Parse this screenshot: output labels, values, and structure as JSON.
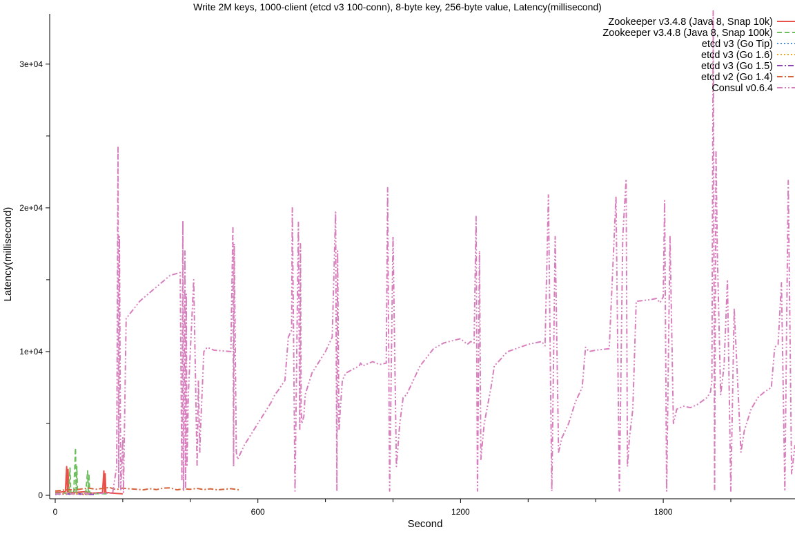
{
  "chart_data": {
    "type": "line",
    "title": "Write 2M keys, 1000-client (etcd v3 100-conn), 8-byte key, 256-byte value, Latency(millisecond)",
    "xlabel": "Second",
    "ylabel": "Latency(millisecond)",
    "xlim": [
      0,
      2190
    ],
    "ylim": [
      0,
      33500
    ],
    "x_ticks": [
      0,
      600,
      1200,
      1800
    ],
    "x_tick_labels": [
      "0",
      "600",
      "1200",
      "1800"
    ],
    "x_minor_ticks": [
      200,
      400,
      800,
      1000,
      1400,
      1600,
      2000
    ],
    "y_ticks": [
      0,
      10000,
      20000,
      30000
    ],
    "y_tick_labels": [
      "0",
      "1e+04",
      "2e+04",
      "3e+04"
    ],
    "y_minor_ticks": [
      5000,
      15000,
      25000
    ],
    "grid": false,
    "legend_position": "top-right",
    "series": [
      {
        "name": "Zookeeper v3.4.8 (Java 8, Snap 10k)",
        "color": "#e8504a",
        "dash": "solid",
        "x": [
          0,
          30,
          34,
          36,
          38,
          40,
          60,
          90,
          110,
          140,
          144,
          146,
          148,
          150,
          170,
          200
        ],
        "y": [
          200,
          250,
          2000,
          250,
          1800,
          200,
          200,
          250,
          150,
          200,
          1700,
          200,
          1500,
          200,
          150,
          100
        ]
      },
      {
        "name": "Zookeeper v3.4.8 (Java 8, Snap 100k)",
        "color": "#6cbf5c",
        "dash": "dashed",
        "x": [
          0,
          40,
          44,
          46,
          50,
          55,
          60,
          62,
          64,
          66,
          70,
          90,
          96,
          98,
          100,
          102,
          120,
          160
        ],
        "y": [
          150,
          150,
          1900,
          150,
          100,
          120,
          3300,
          100,
          2000,
          150,
          120,
          120,
          1700,
          100,
          1500,
          100,
          120,
          100
        ]
      },
      {
        "name": "etcd v3 (Go Tip)",
        "color": "#4a8ee0",
        "dash": "dotted",
        "x": [
          0,
          20,
          40,
          60,
          80,
          100
        ],
        "y": [
          60,
          80,
          70,
          90,
          60,
          50
        ]
      },
      {
        "name": "etcd v3 (Go 1.6)",
        "color": "#f5a623",
        "dash": "dotted",
        "x": [
          0,
          20,
          40,
          60,
          80,
          100,
          110
        ],
        "y": [
          70,
          90,
          80,
          100,
          70,
          60,
          50
        ]
      },
      {
        "name": "etcd v3 (Go 1.5)",
        "color": "#8e44ad",
        "dash": "dash-dot",
        "x": [
          0,
          20,
          40,
          60,
          80,
          100,
          120
        ],
        "y": [
          80,
          100,
          90,
          110,
          80,
          70,
          60
        ]
      },
      {
        "name": "etcd v2 (Go 1.4)",
        "color": "#d3643b",
        "dash": "dash-dot",
        "x": [
          0,
          20,
          40,
          60,
          80,
          100,
          120,
          140,
          160,
          180,
          200,
          220,
          240,
          260,
          280,
          300,
          320,
          340,
          360,
          380,
          400,
          420,
          440,
          460,
          480,
          500,
          520,
          540,
          548
        ],
        "y": [
          300,
          350,
          400,
          380,
          450,
          500,
          420,
          480,
          550,
          400,
          500,
          450,
          420,
          380,
          460,
          400,
          500,
          520,
          380,
          450,
          420,
          480,
          400,
          450,
          380,
          420,
          460,
          400,
          350
        ]
      },
      {
        "name": "Consul v0.6.4",
        "color": "#d77fbd",
        "dash": "dash-dot-dot",
        "x": [
          0,
          170,
          182,
          186,
          188,
          190,
          194,
          200,
          202,
          206,
          210,
          230,
          250,
          300,
          340,
          370,
          375,
          378,
          380,
          384,
          386,
          388,
          390,
          394,
          398,
          410,
          420,
          424,
          428,
          430,
          440,
          450,
          460,
          470,
          520,
          526,
          528,
          530,
          536,
          540,
          560,
          600,
          640,
          650,
          660,
          680,
          690,
          700,
          702,
          710,
          720,
          724,
          726,
          728,
          730,
          736,
          740,
          760,
          800,
          820,
          830,
          834,
          836,
          840,
          844,
          850,
          860,
          900,
          904,
          910,
          940,
          960,
          980,
          984,
          990,
          1000,
          1010,
          1020,
          1030,
          1040,
          1080,
          1120,
          1150,
          1200,
          1220,
          1230,
          1240,
          1246,
          1250,
          1256,
          1260,
          1270,
          1290,
          1300,
          1320,
          1330,
          1340,
          1400,
          1440,
          1450,
          1460,
          1470,
          1480,
          1490,
          1500,
          1520,
          1540,
          1560,
          1570,
          1580,
          1600,
          1640,
          1660,
          1670,
          1680,
          1690,
          1694,
          1700,
          1710,
          1720,
          1760,
          1780,
          1790,
          1800,
          1804,
          1810,
          1820,
          1830,
          1840,
          1860,
          1880,
          1900,
          1930,
          1940,
          1944,
          1948,
          1952,
          1956,
          1960,
          1970,
          1980,
          1990,
          2000,
          2010,
          2030,
          2040,
          2060,
          2080,
          2100,
          2120,
          2130,
          2140,
          2150,
          2160,
          2170,
          2180,
          2190
        ],
        "y": [
          100,
          150,
          2000,
          24300,
          500,
          18000,
          400,
          4000,
          200,
          6000,
          12300,
          12900,
          13500,
          14500,
          15300,
          15500,
          1000,
          19100,
          300,
          17000,
          500,
          14000,
          2000,
          7000,
          9000,
          15000,
          2000,
          8000,
          3000,
          4500,
          10000,
          10300,
          10200,
          10100,
          10000,
          18700,
          2000,
          17500,
          3000,
          2500,
          3500,
          5000,
          6500,
          7000,
          7300,
          8000,
          11000,
          11500,
          20000,
          300,
          19000,
          4500,
          17500,
          6000,
          5000,
          5500,
          7000,
          8500,
          10000,
          11000,
          19700,
          300,
          17000,
          4500,
          6000,
          8000,
          8500,
          9000,
          9200,
          9000,
          9300,
          9100,
          9200,
          21400,
          300,
          18000,
          2000,
          5000,
          6800,
          7000,
          9000,
          10200,
          10600,
          10900,
          10500,
          10700,
          10600,
          19400,
          300,
          17000,
          2500,
          5000,
          7500,
          9000,
          9500,
          9800,
          10000,
          10500,
          10700,
          10400,
          20900,
          300,
          18000,
          3000,
          4000,
          5000,
          6500,
          7500,
          10300,
          10000,
          10100,
          10200,
          20800,
          300,
          18000,
          22000,
          2000,
          4000,
          6000,
          13500,
          13600,
          13700,
          13400,
          13800,
          20500,
          300,
          18000,
          5000,
          6000,
          6200,
          6100,
          6300,
          6800,
          7200,
          8000,
          33700,
          300,
          24000,
          17000,
          7000,
          9000,
          15000,
          300,
          13000,
          3000,
          4500,
          6000,
          6800,
          7200,
          7500,
          10300,
          10500,
          14800,
          300,
          21900,
          1500,
          3500
        ]
      }
    ]
  }
}
